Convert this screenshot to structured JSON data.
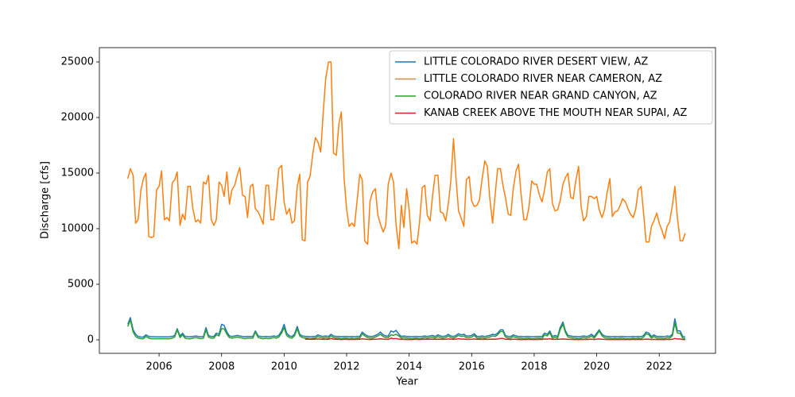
{
  "chart_data": {
    "type": "line",
    "xlabel": "Year",
    "ylabel": "Discharge [cfs]",
    "xlim": [
      2004.09,
      2023.8
    ],
    "ylim": [
      -1215,
      26285
    ],
    "xticks": [
      2006,
      2008,
      2010,
      2012,
      2014,
      2016,
      2018,
      2020,
      2022
    ],
    "yticks": [
      0,
      5000,
      10000,
      15000,
      20000,
      25000
    ],
    "legend": "upper right",
    "x": [
      2005,
      2005.08,
      2005.17,
      2005.25,
      2005.33,
      2005.42,
      2005.5,
      2005.58,
      2005.67,
      2005.75,
      2005.83,
      2005.92,
      2006,
      2006.08,
      2006.17,
      2006.25,
      2006.33,
      2006.42,
      2006.5,
      2006.58,
      2006.67,
      2006.75,
      2006.83,
      2006.92,
      2007,
      2007.08,
      2007.17,
      2007.25,
      2007.33,
      2007.42,
      2007.5,
      2007.58,
      2007.67,
      2007.75,
      2007.83,
      2007.92,
      2008,
      2008.08,
      2008.17,
      2008.25,
      2008.33,
      2008.42,
      2008.5,
      2008.58,
      2008.67,
      2008.75,
      2008.83,
      2008.92,
      2009,
      2009.08,
      2009.17,
      2009.25,
      2009.33,
      2009.42,
      2009.5,
      2009.58,
      2009.67,
      2009.75,
      2009.83,
      2009.92,
      2010,
      2010.08,
      2010.17,
      2010.25,
      2010.33,
      2010.42,
      2010.5,
      2010.58,
      2010.67,
      2010.75,
      2010.83,
      2010.92,
      2011,
      2011.08,
      2011.17,
      2011.25,
      2011.33,
      2011.42,
      2011.5,
      2011.58,
      2011.67,
      2011.75,
      2011.83,
      2011.92,
      2012,
      2012.08,
      2012.17,
      2012.25,
      2012.33,
      2012.42,
      2012.5,
      2012.58,
      2012.67,
      2012.75,
      2012.83,
      2012.92,
      2013,
      2013.08,
      2013.17,
      2013.25,
      2013.33,
      2013.42,
      2013.5,
      2013.58,
      2013.67,
      2013.75,
      2013.83,
      2013.92,
      2014,
      2014.08,
      2014.17,
      2014.25,
      2014.33,
      2014.42,
      2014.5,
      2014.58,
      2014.67,
      2014.75,
      2014.83,
      2014.92,
      2015,
      2015.08,
      2015.17,
      2015.25,
      2015.33,
      2015.42,
      2015.5,
      2015.58,
      2015.67,
      2015.75,
      2015.83,
      2015.92,
      2016,
      2016.08,
      2016.17,
      2016.25,
      2016.33,
      2016.42,
      2016.5,
      2016.58,
      2016.67,
      2016.75,
      2016.83,
      2016.92,
      2017,
      2017.08,
      2017.17,
      2017.25,
      2017.33,
      2017.42,
      2017.5,
      2017.58,
      2017.67,
      2017.75,
      2017.83,
      2017.92,
      2018,
      2018.08,
      2018.17,
      2018.25,
      2018.33,
      2018.42,
      2018.5,
      2018.58,
      2018.67,
      2018.75,
      2018.83,
      2018.92,
      2019,
      2019.08,
      2019.17,
      2019.25,
      2019.33,
      2019.42,
      2019.5,
      2019.58,
      2019.67,
      2019.75,
      2019.83,
      2019.92,
      2020,
      2020.08,
      2020.17,
      2020.25,
      2020.33,
      2020.42,
      2020.5,
      2020.58,
      2020.67,
      2020.75,
      2020.83,
      2020.92,
      2021,
      2021.08,
      2021.17,
      2021.25,
      2021.33,
      2021.42,
      2021.5,
      2021.58,
      2021.67,
      2021.75,
      2021.83,
      2021.92,
      2022,
      2022.08,
      2022.17,
      2022.25,
      2022.33,
      2022.42,
      2022.5,
      2022.58,
      2022.67,
      2022.75,
      2022.83
    ],
    "series": [
      {
        "name": "LITTLE COLORADO RIVER DESERT VIEW, AZ",
        "color": "#1f77b4",
        "values": [
          1400,
          2000,
          900,
          500,
          300,
          250,
          250,
          450,
          300,
          280,
          280,
          270,
          270,
          270,
          270,
          270,
          280,
          300,
          400,
          1000,
          350,
          600,
          300,
          280,
          280,
          300,
          350,
          300,
          280,
          300,
          1100,
          400,
          300,
          300,
          600,
          500,
          1400,
          1300,
          700,
          350,
          300,
          350,
          400,
          350,
          300,
          280,
          300,
          300,
          300,
          800,
          350,
          300,
          280,
          300,
          280,
          300,
          350,
          300,
          400,
          800,
          1400,
          600,
          350,
          300,
          500,
          1200,
          500,
          350,
          300,
          300,
          280,
          300,
          300,
          450,
          350,
          300,
          350,
          300,
          500,
          350,
          300,
          300,
          280,
          300,
          300,
          280,
          300,
          280,
          300,
          300,
          700,
          500,
          350,
          300,
          300,
          400,
          500,
          700,
          450,
          350,
          350,
          800,
          700,
          850,
          500,
          300,
          350,
          300,
          300,
          280,
          300,
          300,
          280,
          300,
          350,
          300,
          350,
          400,
          300,
          450,
          350,
          300,
          350,
          500,
          350,
          300,
          400,
          550,
          450,
          500,
          350,
          350,
          400,
          550,
          300,
          300,
          350,
          300,
          350,
          400,
          500,
          450,
          600,
          900,
          900,
          400,
          300,
          300,
          450,
          350,
          300,
          300,
          280,
          300,
          300,
          280,
          280,
          300,
          300,
          280,
          600,
          500,
          800,
          300,
          400,
          300,
          1100,
          1600,
          800,
          400,
          350,
          300,
          300,
          280,
          300,
          350,
          300,
          350,
          500,
          300,
          600,
          900,
          500,
          350,
          300,
          300,
          280,
          300,
          280,
          300,
          300,
          280,
          280,
          280,
          300,
          280,
          300,
          280,
          400,
          700,
          600,
          300,
          450,
          300,
          300,
          300,
          280,
          350,
          300,
          500,
          1900,
          800,
          800,
          300,
          250
        ]
      },
      {
        "name": "LITTLE COLORADO RIVER NEAR CAMERON, AZ",
        "color": "#ff7f0e",
        "values": [
          14500,
          15400,
          14800,
          10500,
          10800,
          13500,
          14500,
          15000,
          9300,
          9200,
          9300,
          13500,
          13800,
          15200,
          10800,
          11000,
          10700,
          14100,
          14400,
          15100,
          10300,
          11300,
          10800,
          13800,
          13800,
          11800,
          10600,
          10800,
          10500,
          14200,
          14000,
          14800,
          10800,
          10300,
          10800,
          14200,
          13900,
          12900,
          15100,
          12200,
          13500,
          13900,
          14800,
          15500,
          13000,
          12900,
          11000,
          13800,
          14000,
          11800,
          11500,
          11000,
          10400,
          13900,
          13900,
          10800,
          10800,
          13000,
          15400,
          15700,
          12400,
          11300,
          11800,
          10500,
          10700,
          13800,
          14900,
          9000,
          8900,
          14200,
          14700,
          16800,
          18200,
          17800,
          16900,
          20400,
          23500,
          25000,
          25000,
          16800,
          16600,
          19400,
          20500,
          14500,
          11700,
          10200,
          10500,
          10200,
          12400,
          14900,
          14400,
          8900,
          8600,
          12500,
          13300,
          13600,
          11200,
          10400,
          9700,
          10300,
          14000,
          15000,
          14200,
          10400,
          8200,
          12100,
          10100,
          13600,
          11700,
          8700,
          8900,
          8600,
          10500,
          13700,
          13900,
          11200,
          10700,
          13000,
          14800,
          14800,
          11500,
          11400,
          10700,
          12200,
          14200,
          18100,
          14500,
          11600,
          10900,
          10200,
          14400,
          14700,
          12500,
          12000,
          12100,
          12600,
          14400,
          16100,
          15600,
          12700,
          10500,
          13000,
          15400,
          15400,
          13900,
          12800,
          11300,
          11200,
          13600,
          15200,
          15800,
          13100,
          10800,
          10800,
          11900,
          14300,
          14000,
          14000,
          13000,
          12400,
          13500,
          15100,
          15400,
          12300,
          11600,
          11700,
          12500,
          14000,
          14600,
          15000,
          12800,
          12700,
          14300,
          15600,
          12000,
          10700,
          11100,
          12900,
          12900,
          12700,
          12900,
          11700,
          11000,
          11700,
          13200,
          14500,
          11100,
          11500,
          11600,
          12100,
          12700,
          12400,
          11800,
          11300,
          11000,
          11800,
          13500,
          13800,
          11400,
          8800,
          8800,
          10200,
          10700,
          11400,
          10500,
          9900,
          9100,
          10200,
          10600,
          12100,
          13800,
          11000,
          8900,
          8900,
          9600
        ]
      },
      {
        "name": "COLORADO RIVER NEAR GRAND CANYON, AZ",
        "color": "#2ca02c",
        "values": [
          1200,
          1800,
          700,
          300,
          150,
          100,
          100,
          300,
          150,
          100,
          100,
          100,
          100,
          100,
          100,
          100,
          100,
          150,
          250,
          900,
          200,
          450,
          150,
          100,
          100,
          150,
          200,
          150,
          100,
          150,
          900,
          250,
          150,
          150,
          450,
          350,
          1000,
          1000,
          500,
          200,
          150,
          200,
          250,
          200,
          150,
          100,
          150,
          150,
          150,
          700,
          200,
          150,
          100,
          150,
          100,
          150,
          200,
          150,
          250,
          600,
          1100,
          400,
          200,
          150,
          350,
          1000,
          350,
          200,
          150,
          150,
          100,
          150,
          150,
          300,
          200,
          150,
          200,
          150,
          350,
          200,
          150,
          150,
          100,
          150,
          150,
          100,
          150,
          100,
          150,
          150,
          550,
          350,
          200,
          150,
          150,
          250,
          350,
          500,
          300,
          200,
          200,
          450,
          400,
          500,
          350,
          150,
          200,
          150,
          150,
          100,
          150,
          150,
          100,
          150,
          200,
          150,
          200,
          250,
          150,
          300,
          200,
          150,
          200,
          350,
          200,
          150,
          250,
          400,
          300,
          350,
          200,
          200,
          250,
          400,
          150,
          150,
          200,
          150,
          200,
          250,
          350,
          300,
          450,
          750,
          750,
          250,
          150,
          150,
          300,
          200,
          150,
          150,
          100,
          150,
          150,
          100,
          100,
          150,
          150,
          100,
          450,
          350,
          650,
          150,
          250,
          150,
          900,
          1400,
          650,
          250,
          200,
          150,
          150,
          100,
          150,
          200,
          150,
          200,
          350,
          150,
          450,
          800,
          350,
          200,
          150,
          150,
          100,
          150,
          100,
          150,
          150,
          100,
          100,
          100,
          150,
          100,
          150,
          100,
          250,
          550,
          450,
          150,
          300,
          150,
          150,
          150,
          100,
          200,
          150,
          350,
          1500,
          600,
          600,
          150,
          100
        ]
      },
      {
        "name": "KANAB CREEK ABOVE THE MOUTH NEAR SUPAI, AZ",
        "color": "#d62728",
        "values": [
          null,
          null,
          null,
          null,
          null,
          null,
          null,
          null,
          null,
          null,
          null,
          null,
          null,
          null,
          null,
          null,
          null,
          null,
          null,
          null,
          null,
          null,
          null,
          null,
          null,
          null,
          null,
          null,
          null,
          null,
          null,
          null,
          null,
          null,
          null,
          null,
          null,
          null,
          null,
          null,
          null,
          null,
          null,
          null,
          null,
          null,
          null,
          null,
          null,
          null,
          null,
          null,
          null,
          null,
          null,
          null,
          null,
          null,
          null,
          null,
          null,
          null,
          null,
          null,
          null,
          null,
          null,
          null,
          50,
          60,
          50,
          40,
          60,
          80,
          50,
          40,
          50,
          40,
          120,
          60,
          40,
          40,
          30,
          40,
          40,
          30,
          40,
          30,
          40,
          40,
          100,
          60,
          40,
          30,
          40,
          50,
          60,
          100,
          60,
          40,
          40,
          150,
          100,
          120,
          60,
          40,
          40,
          30,
          30,
          30,
          40,
          40,
          30,
          40,
          50,
          40,
          50,
          60,
          40,
          60,
          50,
          40,
          50,
          80,
          50,
          40,
          60,
          100,
          60,
          80,
          40,
          40,
          50,
          80,
          40,
          40,
          50,
          40,
          40,
          50,
          60,
          50,
          80,
          120,
          120,
          50,
          40,
          30,
          60,
          40,
          30,
          30,
          30,
          30,
          40,
          30,
          30,
          30,
          40,
          30,
          80,
          60,
          100,
          40,
          50,
          40,
          60,
          80,
          60,
          40,
          40,
          30,
          30,
          30,
          30,
          40,
          30,
          40,
          60,
          30,
          60,
          80,
          50,
          40,
          30,
          30,
          30,
          30,
          30,
          30,
          30,
          30,
          30,
          30,
          40,
          30,
          40,
          30,
          40,
          60,
          50,
          30,
          40,
          30,
          30,
          30,
          30,
          40,
          30,
          50,
          120,
          80,
          80,
          30,
          20
        ]
      }
    ]
  }
}
